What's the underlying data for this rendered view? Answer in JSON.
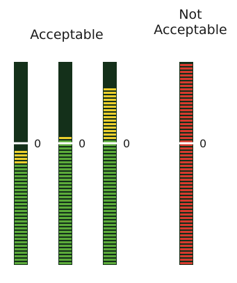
{
  "labels": {
    "acceptable": "Acceptable",
    "not_acceptable_line1": "Not",
    "not_acceptable_line2": "Acceptable"
  },
  "scale": {
    "zero_label": "0",
    "max_level": 1.0
  },
  "colors": {
    "background_dark": "#14301a",
    "green": "#5cab3a",
    "yellow": "#ecd02d",
    "red": "#d63a2e",
    "reference_line": "#ffffff"
  },
  "meters": [
    {
      "name": "meter-1",
      "group": "acceptable",
      "color_mode": "green-yellow",
      "level": -0.09
    },
    {
      "name": "meter-2",
      "group": "acceptable",
      "color_mode": "green-yellow",
      "level": 0.07
    },
    {
      "name": "meter-3",
      "group": "acceptable",
      "color_mode": "green-yellow",
      "level": 0.66
    },
    {
      "name": "meter-4",
      "group": "not-acceptable",
      "color_mode": "red",
      "level": 1.0
    }
  ]
}
